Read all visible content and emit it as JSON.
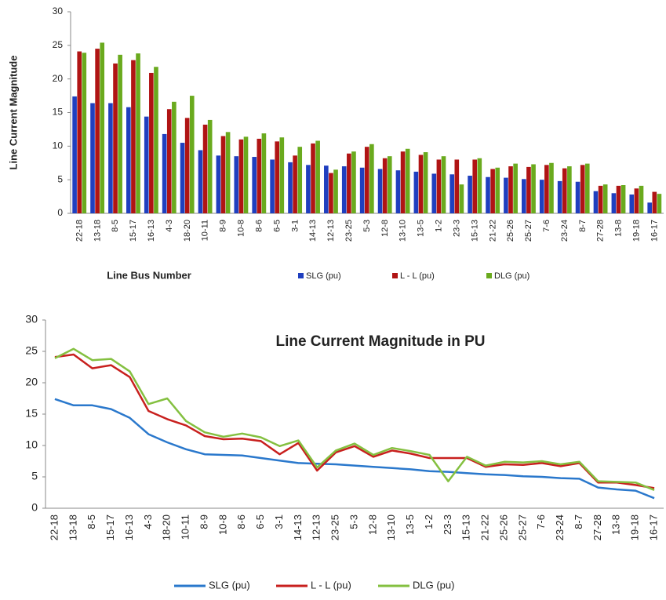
{
  "chart_data": [
    {
      "type": "bar",
      "ylabel": "Line Current Magnitude",
      "xlabel": "Line Bus Number",
      "categories": [
        "22-18",
        "13-18",
        "8-5",
        "15-17",
        "16-13",
        "4-3",
        "18-20",
        "10-11",
        "8-9",
        "10-8",
        "8-6",
        "6-5",
        "3-1",
        "14-13",
        "12-13",
        "23-25",
        "5-3",
        "12-8",
        "13-10",
        "13-5",
        "1-2",
        "23-3",
        "15-13",
        "21-22",
        "25-26",
        "25-27",
        "7-6",
        "23-24",
        "8-7",
        "27-28",
        "13-8",
        "19-18",
        "16-17"
      ],
      "series": [
        {
          "name": "SLG (pu)",
          "color": "#1f3fbf",
          "values": [
            17.4,
            16.4,
            16.4,
            15.8,
            14.4,
            11.8,
            10.5,
            9.4,
            8.6,
            8.5,
            8.4,
            8.0,
            7.6,
            7.2,
            7.1,
            7.0,
            6.8,
            6.6,
            6.4,
            6.2,
            5.9,
            5.8,
            5.6,
            5.4,
            5.3,
            5.1,
            5.0,
            4.8,
            4.7,
            3.3,
            3.0,
            2.8,
            1.6
          ]
        },
        {
          "name": "L - L (pu)",
          "color": "#b01414",
          "values": [
            24.1,
            24.5,
            22.3,
            22.8,
            20.9,
            15.5,
            14.2,
            13.2,
            11.5,
            11.0,
            11.1,
            10.7,
            8.6,
            10.4,
            6.0,
            8.9,
            9.9,
            8.2,
            9.2,
            8.7,
            8.0,
            8.0,
            8.0,
            6.6,
            7.0,
            6.9,
            7.2,
            6.7,
            7.2,
            4.1,
            4.1,
            3.7,
            3.2
          ]
        },
        {
          "name": "DLG (pu)",
          "color": "#6aaa1e",
          "values": [
            23.9,
            25.4,
            23.6,
            23.8,
            21.8,
            16.6,
            17.5,
            13.9,
            12.1,
            11.4,
            11.9,
            11.3,
            9.9,
            10.8,
            6.5,
            9.2,
            10.3,
            8.5,
            9.6,
            9.1,
            8.5,
            4.3,
            8.2,
            6.8,
            7.4,
            7.3,
            7.5,
            7.0,
            7.4,
            4.3,
            4.2,
            4.1,
            2.9
          ]
        }
      ],
      "ylim": [
        0,
        30
      ],
      "yticks": [
        0,
        5,
        10,
        15,
        20,
        25,
        30
      ],
      "grid": false
    },
    {
      "type": "line",
      "title": "Line  Current Magnitude in PU",
      "categories": [
        "22-18",
        "13-18",
        "8-5",
        "15-17",
        "16-13",
        "4-3",
        "18-20",
        "10-11",
        "8-9",
        "10-8",
        "8-6",
        "6-5",
        "3-1",
        "14-13",
        "12-13",
        "23-25",
        "5-3",
        "12-8",
        "13-10",
        "13-5",
        "1-2",
        "23-3",
        "15-13",
        "21-22",
        "25-26",
        "25-27",
        "7-6",
        "23-24",
        "8-7",
        "27-28",
        "13-8",
        "19-18",
        "16-17"
      ],
      "series": [
        {
          "name": "SLG (pu)",
          "color": "#2a78cc",
          "values": [
            17.4,
            16.4,
            16.4,
            15.8,
            14.4,
            11.8,
            10.5,
            9.4,
            8.6,
            8.5,
            8.4,
            8.0,
            7.6,
            7.2,
            7.1,
            7.0,
            6.8,
            6.6,
            6.4,
            6.2,
            5.9,
            5.8,
            5.6,
            5.4,
            5.3,
            5.1,
            5.0,
            4.8,
            4.7,
            3.3,
            3.0,
            2.8,
            1.6
          ]
        },
        {
          "name": "L - L (pu)",
          "color": "#c8201e",
          "values": [
            24.1,
            24.5,
            22.3,
            22.8,
            20.9,
            15.5,
            14.2,
            13.2,
            11.5,
            11.0,
            11.1,
            10.7,
            8.6,
            10.4,
            6.0,
            8.9,
            9.9,
            8.2,
            9.2,
            8.7,
            8.0,
            8.0,
            8.0,
            6.6,
            7.0,
            6.9,
            7.2,
            6.7,
            7.2,
            4.1,
            4.1,
            3.7,
            3.2
          ]
        },
        {
          "name": "DLG (pu)",
          "color": "#84c040",
          "values": [
            23.9,
            25.4,
            23.6,
            23.8,
            21.8,
            16.6,
            17.5,
            13.9,
            12.1,
            11.4,
            11.9,
            11.3,
            9.9,
            10.8,
            6.5,
            9.2,
            10.3,
            8.5,
            9.6,
            9.1,
            8.5,
            4.3,
            8.2,
            6.8,
            7.4,
            7.3,
            7.5,
            7.0,
            7.4,
            4.3,
            4.2,
            4.1,
            2.9
          ]
        }
      ],
      "ylim": [
        0,
        30
      ],
      "yticks": [
        0,
        5,
        10,
        15,
        20,
        25,
        30
      ],
      "grid": false
    }
  ]
}
